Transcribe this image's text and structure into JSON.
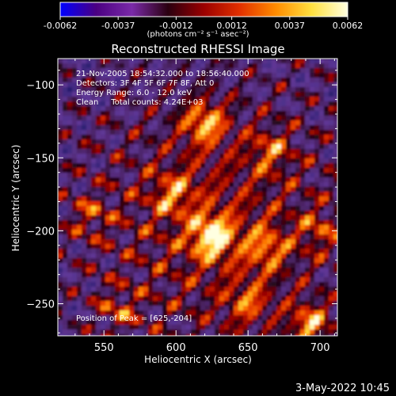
{
  "chart_data": {
    "type": "heatmap",
    "title": "Reconstructed RHESSI Image",
    "xlabel": "Heliocentric X (arcsec)",
    "ylabel": "Heliocentric Y (arcsec)",
    "xlim": [
      518,
      712
    ],
    "ylim": [
      -272,
      -82
    ],
    "xticks": [
      550,
      600,
      650,
      700
    ],
    "yticks": [
      -100,
      -150,
      -200,
      -250
    ],
    "colorbar": {
      "min": -0.0062,
      "max": 0.0062,
      "ticks": [
        -0.0062,
        -0.0037,
        -0.0012,
        0.0012,
        0.0037,
        0.0062
      ],
      "tick_labels": [
        "-0.0062",
        "-0.0037",
        "-0.0012",
        "0.0012",
        "0.0037",
        "0.0062"
      ],
      "units": "(photons cm⁻² s⁻¹ asec⁻²)",
      "colors": [
        "#0000ff",
        "#4b0082",
        "#7a2aa8",
        "#2a0010",
        "#9b0000",
        "#e23000",
        "#ff8c00",
        "#ffe040",
        "#ffffe0"
      ]
    },
    "annotations": {
      "time": "21-Nov-2005 18:54:32.000 to 18:56:40.000",
      "detectors": "Detectors: 3F 4F 5F 6F 7F 8F, Att 0",
      "energy": "Energy Range: 6.0 - 12.0 keV",
      "method": "Clean     Total counts: 4.24E+03",
      "peak": "Position of Peak = [625,-204]"
    },
    "sources": [
      {
        "x": 625,
        "y": -204,
        "value": 0.0062
      },
      {
        "x": 620,
        "y": -126,
        "value": 0.0055
      },
      {
        "x": 693,
        "y": -264,
        "value": 0.0055
      },
      {
        "x": 662,
        "y": -212,
        "value": 0.0038
      },
      {
        "x": 598,
        "y": -175,
        "value": 0.0035
      },
      {
        "x": 665,
        "y": -145,
        "value": 0.0033
      },
      {
        "x": 540,
        "y": -190,
        "value": 0.003
      },
      {
        "x": 560,
        "y": -255,
        "value": 0.0032
      },
      {
        "x": 650,
        "y": -250,
        "value": 0.0035
      },
      {
        "x": 700,
        "y": -200,
        "value": 0.003
      }
    ],
    "grid": false,
    "colorbar_position": "top"
  },
  "footer": {
    "timestamp": "3-May-2022 10:45"
  }
}
